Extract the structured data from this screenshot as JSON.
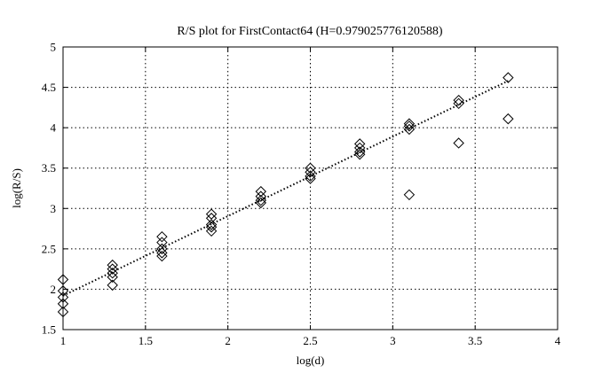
{
  "chart_data": {
    "type": "scatter",
    "title": "R/S plot for FirstContact64 (H=0.979025776120588)",
    "xlabel": "log(d)",
    "ylabel": "log(R/S)",
    "xlim": [
      1,
      4
    ],
    "ylim": [
      1.5,
      5
    ],
    "xticks": [
      1,
      1.5,
      2,
      2.5,
      3,
      3.5,
      4
    ],
    "xtick_labels": [
      "1",
      "1.5",
      "2",
      "2.5",
      "3",
      "3.5",
      "4"
    ],
    "yticks": [
      1.5,
      2,
      2.5,
      3,
      3.5,
      4,
      4.5,
      5
    ],
    "ytick_labels": [
      "1.5",
      "2",
      "2.5",
      "3",
      "3.5",
      "4",
      "4.5",
      "5"
    ],
    "grid": true,
    "legend": "none",
    "series": [
      {
        "marker": "diamond",
        "points": [
          [
            1.0,
            2.12
          ],
          [
            1.0,
            1.98
          ],
          [
            1.0,
            1.9
          ],
          [
            1.0,
            1.82
          ],
          [
            1.0,
            1.72
          ],
          [
            1.3,
            2.3
          ],
          [
            1.3,
            2.25
          ],
          [
            1.3,
            2.2
          ],
          [
            1.3,
            2.15
          ],
          [
            1.3,
            2.05
          ],
          [
            1.6,
            2.65
          ],
          [
            1.6,
            2.58
          ],
          [
            1.6,
            2.5
          ],
          [
            1.6,
            2.45
          ],
          [
            1.6,
            2.41
          ],
          [
            1.9,
            2.93
          ],
          [
            1.9,
            2.88
          ],
          [
            1.9,
            2.8
          ],
          [
            1.9,
            2.77
          ],
          [
            1.9,
            2.72
          ],
          [
            2.2,
            3.21
          ],
          [
            2.2,
            3.15
          ],
          [
            2.2,
            3.1
          ],
          [
            2.2,
            3.07
          ],
          [
            2.5,
            3.5
          ],
          [
            2.5,
            3.45
          ],
          [
            2.5,
            3.4
          ],
          [
            2.5,
            3.37
          ],
          [
            2.8,
            3.8
          ],
          [
            2.8,
            3.75
          ],
          [
            2.8,
            3.7
          ],
          [
            2.8,
            3.67
          ],
          [
            3.1,
            4.05
          ],
          [
            3.1,
            4.02
          ],
          [
            3.1,
            3.98
          ],
          [
            3.1,
            3.17
          ],
          [
            3.4,
            4.34
          ],
          [
            3.4,
            4.3
          ],
          [
            3.4,
            3.81
          ],
          [
            3.7,
            4.62
          ],
          [
            3.7,
            4.11
          ]
        ]
      }
    ],
    "fit_line": {
      "x": [
        1.0,
        3.7
      ],
      "y": [
        1.92,
        4.58
      ]
    }
  }
}
